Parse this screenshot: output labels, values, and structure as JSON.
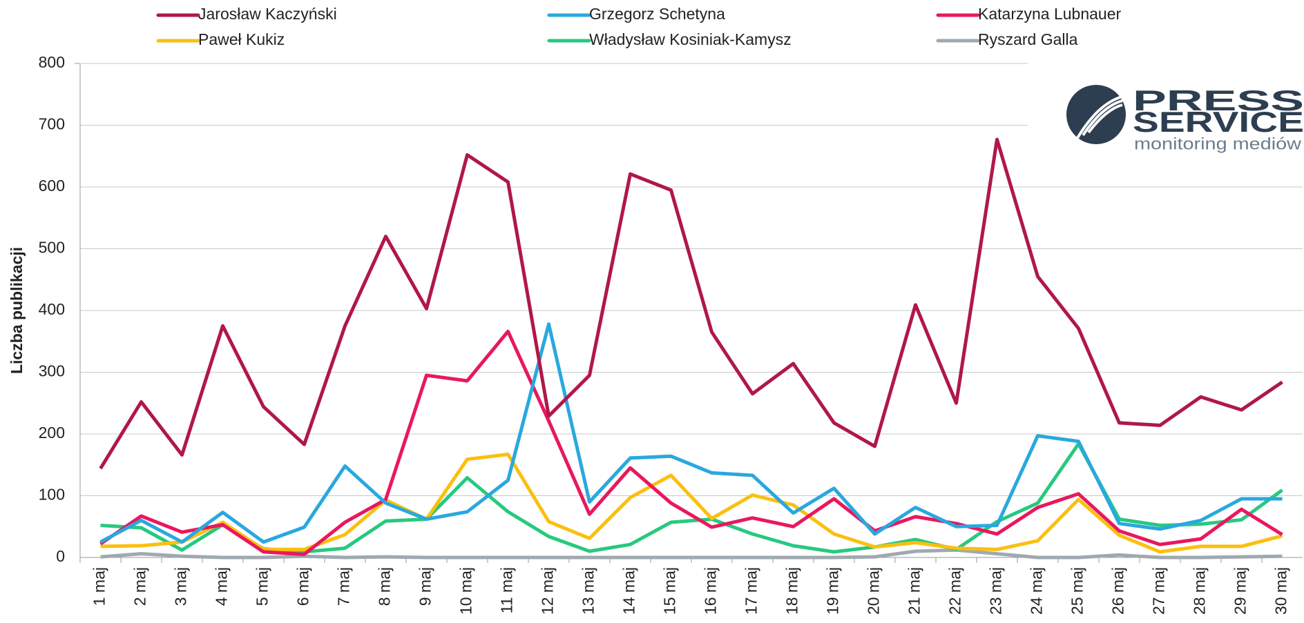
{
  "chart_data": {
    "type": "line",
    "ylabel": "Liczba publikacji",
    "categories": [
      "1 maj",
      "2 maj",
      "3 maj",
      "4 maj",
      "5 maj",
      "6 maj",
      "7 maj",
      "8 maj",
      "9 maj",
      "10 maj",
      "11 maj",
      "12 maj",
      "13 maj",
      "14 maj",
      "15 maj",
      "16 maj",
      "17 maj",
      "18 maj",
      "19 maj",
      "20 maj",
      "21 maj",
      "22 maj",
      "23 maj",
      "24 maj",
      "25 maj",
      "26 maj",
      "27 maj",
      "28 maj",
      "29 maj",
      "30 maj"
    ],
    "series": [
      {
        "name": "Jarosław Kaczyński",
        "color": "#b0174a",
        "values": [
          144,
          252,
          166,
          375,
          244,
          183,
          375,
          520,
          403,
          652,
          608,
          229,
          295,
          621,
          595,
          365,
          265,
          314,
          218,
          180,
          409,
          250,
          677,
          455,
          371,
          218,
          214,
          260,
          239,
          284
        ]
      },
      {
        "name": "Grzegorz Schetyna",
        "color": "#29a8df",
        "values": [
          25,
          60,
          25,
          73,
          25,
          49,
          148,
          88,
          62,
          74,
          125,
          378,
          90,
          161,
          164,
          137,
          133,
          72,
          112,
          38,
          81,
          50,
          52,
          197,
          188,
          55,
          46,
          60,
          95,
          95
        ]
      },
      {
        "name": "Katarzyna Lubnauer",
        "color": "#e8185f",
        "values": [
          22,
          67,
          41,
          53,
          9,
          5,
          57,
          94,
          295,
          286,
          366,
          221,
          70,
          145,
          88,
          49,
          64,
          50,
          95,
          43,
          66,
          55,
          38,
          81,
          103,
          43,
          21,
          30,
          78,
          37
        ]
      },
      {
        "name": "Paweł Kukiz",
        "color": "#fbbf0f",
        "values": [
          18,
          19,
          25,
          57,
          13,
          13,
          37,
          93,
          62,
          159,
          167,
          58,
          31,
          97,
          133,
          63,
          101,
          85,
          38,
          17,
          24,
          15,
          13,
          27,
          94,
          36,
          9,
          18,
          18,
          35
        ]
      },
      {
        "name": "Władysław Kosiniak-Kamysz",
        "color": "#27c97e",
        "values": [
          52,
          48,
          12,
          53,
          14,
          9,
          15,
          59,
          62,
          129,
          74,
          34,
          10,
          21,
          57,
          62,
          38,
          19,
          9,
          17,
          29,
          13,
          58,
          88,
          184,
          62,
          52,
          54,
          61,
          109
        ]
      },
      {
        "name": "Ryszard Galla",
        "color": "#a0a9b0",
        "values": [
          1,
          6,
          2,
          0,
          0,
          2,
          0,
          1,
          0,
          0,
          0,
          0,
          0,
          0,
          0,
          0,
          0,
          0,
          0,
          1,
          10,
          12,
          6,
          0,
          0,
          4,
          0,
          0,
          1,
          2
        ]
      }
    ],
    "ylim": [
      0,
      800
    ],
    "yticks": [
      0,
      100,
      200,
      300,
      400,
      500,
      600,
      700,
      800
    ],
    "grid": true
  },
  "logo": {
    "line1": "PRESS",
    "line2": "SERVICE",
    "tagline": "monitoring mediów"
  }
}
